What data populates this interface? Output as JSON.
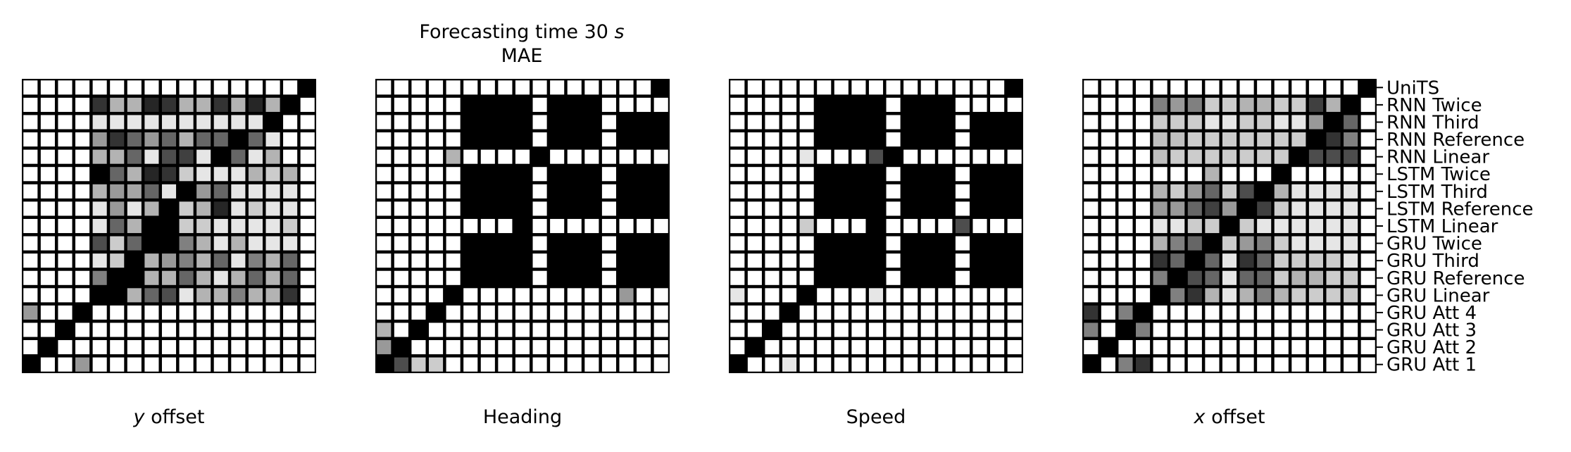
{
  "title_line1_prefix": "Forecasting time 30 ",
  "title_line1_unit": "s",
  "title_line2": "MAE",
  "models": [
    "UniTS",
    "RNN Twice",
    "RNN Third",
    "RNN Reference",
    "RNN Linear",
    "LSTM Twice",
    "LSTM Third",
    "LSTM Reference",
    "LSTM Linear",
    "GRU Twice",
    "GRU Third",
    "GRU Reference",
    "GRU Linear",
    "GRU Att 4",
    "GRU Att 3",
    "GRU Att 2",
    "GRU Att 1"
  ],
  "colors": {
    "background": "#ffffff",
    "cell_text": "#000000"
  },
  "chart_data": [
    {
      "type": "heatmap",
      "xlabel_var": "y",
      "xlabel_rest": " offset",
      "value_range": [
        0,
        1
      ],
      "colormap": "0 = white, 1 = black",
      "values": [
        [
          0,
          0,
          0,
          0,
          0,
          0,
          0,
          0,
          0,
          0,
          0,
          0,
          0,
          0,
          0,
          0,
          1
        ],
        [
          0,
          0,
          0,
          0,
          0.8,
          0.3,
          0.3,
          0.85,
          0.8,
          0.3,
          0.3,
          0.8,
          0.3,
          0.85,
          0.3,
          1,
          0
        ],
        [
          0,
          0,
          0,
          0,
          0.1,
          0.1,
          0.1,
          0.1,
          0.1,
          0.1,
          0.1,
          0.1,
          0.1,
          0.1,
          1,
          0,
          0
        ],
        [
          0,
          0,
          0,
          0,
          0.4,
          0.8,
          0.6,
          0.4,
          0.6,
          0.3,
          0.6,
          0.6,
          1,
          0.6,
          0.1,
          0,
          0
        ],
        [
          0,
          0,
          0,
          0,
          0.3,
          0.3,
          0.6,
          0.1,
          0.7,
          0.75,
          0.1,
          1,
          0.6,
          0.1,
          0.3,
          0,
          0
        ],
        [
          0,
          0,
          0,
          0,
          1,
          0.6,
          0.3,
          0.85,
          0.8,
          0.2,
          0.1,
          0.1,
          0.1,
          0.3,
          0.2,
          0.3,
          0
        ],
        [
          0,
          0,
          0,
          0,
          0.3,
          0.4,
          0.35,
          0.6,
          0.1,
          1,
          0.4,
          0.6,
          0.1,
          0.1,
          0.1,
          0.1,
          0
        ],
        [
          0,
          0,
          0,
          0,
          0.1,
          0.4,
          0.1,
          0.3,
          1,
          0.2,
          0.3,
          0.85,
          0.1,
          0.2,
          0.1,
          0.1,
          0
        ],
        [
          0,
          0,
          0,
          0,
          0.1,
          0.6,
          0.3,
          1,
          1,
          0.2,
          0.2,
          0.1,
          0.1,
          0.1,
          0.1,
          0.2,
          0
        ],
        [
          0,
          0,
          0,
          0,
          0.7,
          0.2,
          0.6,
          1,
          1,
          0.5,
          0.3,
          0.1,
          0.3,
          0.1,
          0.1,
          0.1,
          0
        ],
        [
          0,
          0,
          0,
          0,
          0.1,
          0.2,
          1,
          0.3,
          0.4,
          0.5,
          0.3,
          0.6,
          0.1,
          0.5,
          0.3,
          0.6,
          0
        ],
        [
          0,
          0,
          0,
          0,
          0.5,
          1,
          1,
          0.3,
          0.3,
          0.6,
          0.3,
          0.1,
          0.3,
          0.6,
          0.3,
          0.6,
          0
        ],
        [
          0,
          0,
          0,
          0,
          1,
          1,
          0.3,
          0.6,
          0.7,
          0.1,
          0.3,
          0.3,
          0.5,
          0.3,
          0.3,
          0.8,
          0
        ],
        [
          0.4,
          0,
          0,
          1,
          0,
          0,
          0,
          0,
          0,
          0,
          0,
          0,
          0,
          0,
          0,
          0,
          0
        ],
        [
          0,
          0,
          1,
          0,
          0,
          0,
          0,
          0,
          0,
          0,
          0,
          0,
          0,
          0,
          0,
          0,
          0
        ],
        [
          0,
          1,
          0,
          0,
          0,
          0,
          0,
          0,
          0,
          0,
          0,
          0,
          0,
          0,
          0,
          0,
          0
        ],
        [
          1,
          0,
          0,
          0.4,
          0,
          0,
          0,
          0,
          0,
          0,
          0,
          0,
          0,
          0,
          0,
          0,
          0
        ]
      ]
    },
    {
      "type": "heatmap",
      "xlabel_var": "",
      "xlabel_rest": "Heading",
      "value_range": [
        0,
        1
      ],
      "values": [
        [
          0,
          0,
          0,
          0,
          0,
          0,
          0,
          0,
          0,
          0,
          0,
          0,
          0,
          0,
          0,
          0,
          1
        ],
        [
          0,
          0,
          0,
          0,
          0,
          1,
          1,
          1,
          1,
          0,
          1,
          1,
          1,
          0,
          0,
          0,
          0
        ],
        [
          0,
          0,
          0,
          0,
          0,
          1,
          1,
          1,
          1,
          0,
          1,
          1,
          1,
          0,
          1,
          1,
          1
        ],
        [
          0,
          0,
          0,
          0,
          0,
          1,
          1,
          1,
          1,
          0,
          1,
          1,
          1,
          0,
          1,
          1,
          1
        ],
        [
          0,
          0,
          0,
          0,
          0.3,
          0,
          0,
          0,
          0,
          1,
          0,
          0,
          0,
          0,
          0,
          0,
          0
        ],
        [
          0,
          0,
          0,
          0,
          0,
          1,
          1,
          1,
          1,
          0,
          1,
          1,
          1,
          0,
          1,
          1,
          1
        ],
        [
          0,
          0,
          0,
          0,
          0,
          1,
          1,
          1,
          1,
          0,
          1,
          1,
          1,
          0,
          1,
          1,
          1
        ],
        [
          0,
          0,
          0,
          0,
          0,
          1,
          1,
          1,
          1,
          0,
          1,
          1,
          1,
          0,
          1,
          1,
          1
        ],
        [
          0,
          0,
          0,
          0,
          0,
          0,
          0,
          0,
          1,
          0,
          0,
          0,
          0,
          0,
          0,
          0,
          0
        ],
        [
          0,
          0,
          0,
          0,
          0,
          1,
          1,
          1,
          1,
          0,
          1,
          1,
          1,
          0,
          1,
          1,
          1
        ],
        [
          0,
          0,
          0,
          0,
          0,
          1,
          1,
          1,
          1,
          0,
          1,
          1,
          1,
          0,
          1,
          1,
          1
        ],
        [
          0,
          0,
          0,
          0,
          0,
          1,
          1,
          1,
          1,
          0,
          1,
          1,
          1,
          0,
          1,
          1,
          1
        ],
        [
          0,
          0,
          0,
          0,
          1,
          0,
          0,
          0,
          0,
          0,
          0,
          0,
          0,
          0,
          0.4,
          0,
          0
        ],
        [
          0,
          0,
          0,
          1,
          0,
          0,
          0,
          0,
          0,
          0,
          0,
          0,
          0,
          0,
          0,
          0,
          0
        ],
        [
          0.3,
          0,
          1,
          0,
          0,
          0,
          0,
          0,
          0,
          0,
          0,
          0,
          0,
          0,
          0,
          0,
          0
        ],
        [
          0.4,
          1,
          0,
          0,
          0,
          0,
          0,
          0,
          0,
          0,
          0,
          0,
          0,
          0,
          0,
          0,
          0
        ],
        [
          1,
          0.7,
          0.2,
          0.2,
          0,
          0,
          0,
          0,
          0,
          0,
          0,
          0,
          0,
          0,
          0,
          0,
          0
        ]
      ]
    },
    {
      "type": "heatmap",
      "xlabel_var": "",
      "xlabel_rest": "Speed",
      "value_range": [
        0,
        1
      ],
      "values": [
        [
          0,
          0,
          0,
          0,
          0,
          0,
          0,
          0,
          0,
          0,
          0,
          0,
          0,
          0,
          0,
          0,
          1
        ],
        [
          0,
          0,
          0,
          0,
          0,
          1,
          1,
          1,
          1,
          0,
          1,
          1,
          1,
          0,
          0,
          0,
          0
        ],
        [
          0,
          0,
          0,
          0,
          0,
          1,
          1,
          1,
          1,
          0,
          1,
          1,
          1,
          0,
          1,
          1,
          1
        ],
        [
          0,
          0,
          0,
          0,
          0,
          1,
          1,
          1,
          1,
          0,
          1,
          1,
          1,
          0,
          1,
          1,
          1
        ],
        [
          0,
          0,
          0,
          0,
          0.1,
          0,
          0,
          0,
          0.7,
          1,
          0,
          0,
          0,
          0,
          0,
          0,
          0
        ],
        [
          0,
          0,
          0,
          0,
          0,
          1,
          1,
          1,
          1,
          0,
          1,
          1,
          1,
          0,
          1,
          1,
          1
        ],
        [
          0,
          0,
          0,
          0,
          0,
          1,
          1,
          1,
          1,
          0,
          1,
          1,
          1,
          0,
          1,
          1,
          1
        ],
        [
          0,
          0,
          0,
          0,
          0,
          1,
          1,
          1,
          1,
          0,
          1,
          1,
          1,
          0,
          1,
          1,
          1
        ],
        [
          0,
          0,
          0,
          0,
          0.2,
          0,
          0,
          0,
          1,
          0,
          0,
          0,
          0,
          0.7,
          0,
          0,
          0
        ],
        [
          0,
          0,
          0,
          0,
          0,
          1,
          1,
          1,
          1,
          0,
          1,
          1,
          1,
          0,
          1,
          1,
          1
        ],
        [
          0,
          0,
          0,
          0,
          0,
          1,
          1,
          1,
          1,
          0,
          1,
          1,
          1,
          0,
          1,
          1,
          1
        ],
        [
          0,
          0,
          0,
          0,
          0,
          1,
          1,
          1,
          1,
          0,
          1,
          1,
          1,
          0,
          1,
          1,
          1
        ],
        [
          0.1,
          0,
          0,
          0,
          1,
          0,
          0,
          0,
          0.1,
          0,
          0,
          0,
          0,
          0,
          0,
          0,
          0
        ],
        [
          0,
          0,
          0,
          1,
          0,
          0,
          0,
          0,
          0,
          0,
          0,
          0,
          0,
          0,
          0,
          0,
          0
        ],
        [
          0,
          0,
          1,
          0,
          0,
          0,
          0,
          0,
          0,
          0,
          0,
          0,
          0,
          0,
          0,
          0,
          0
        ],
        [
          0,
          1,
          0,
          0,
          0,
          0,
          0,
          0,
          0,
          0,
          0,
          0,
          0,
          0,
          0,
          0,
          0
        ],
        [
          1,
          0,
          0,
          0.1,
          0,
          0,
          0,
          0,
          0,
          0,
          0,
          0,
          0,
          0,
          0,
          0,
          0
        ]
      ]
    },
    {
      "type": "heatmap",
      "xlabel_var": "x",
      "xlabel_rest": " offset",
      "value_range": [
        0,
        1
      ],
      "values": [
        [
          0,
          0,
          0,
          0,
          0,
          0,
          0,
          0,
          0,
          0,
          0,
          0,
          0,
          0,
          0,
          0,
          1
        ],
        [
          0,
          0,
          0,
          0,
          0.5,
          0.4,
          0.5,
          0.2,
          0.2,
          0.3,
          0.3,
          0.2,
          0.2,
          0.75,
          0.3,
          1,
          0
        ],
        [
          0,
          0,
          0,
          0,
          0.2,
          0.2,
          0.2,
          0.1,
          0.1,
          0.2,
          0.2,
          0.1,
          0.1,
          0.4,
          1,
          0.6,
          0
        ],
        [
          0,
          0,
          0,
          0,
          0.25,
          0.25,
          0.2,
          0.2,
          0.2,
          0.2,
          0.2,
          0.2,
          0.2,
          1,
          0.8,
          0.5,
          0
        ],
        [
          0,
          0,
          0,
          0,
          0.25,
          0.2,
          0.2,
          0.2,
          0.2,
          0.2,
          0.2,
          0.2,
          1,
          0.7,
          0.7,
          0.7,
          0
        ],
        [
          0,
          0,
          0,
          0,
          0,
          0,
          0,
          0.3,
          0,
          0,
          0,
          1,
          0,
          0,
          0,
          0,
          0
        ],
        [
          0,
          0,
          0,
          0,
          0.3,
          0.2,
          0.4,
          0.6,
          0.2,
          0.7,
          1,
          0.3,
          0.1,
          0.1,
          0.1,
          0.1,
          0
        ],
        [
          0,
          0,
          0,
          0,
          0.4,
          0.4,
          0.6,
          0.75,
          0.4,
          1,
          0.75,
          0.2,
          0.1,
          0.1,
          0.1,
          0.1,
          0
        ],
        [
          0,
          0,
          0,
          0,
          0.1,
          0.1,
          0.2,
          0.2,
          1,
          0.2,
          0.1,
          0.1,
          0.1,
          0.1,
          0.1,
          0.1,
          0
        ],
        [
          0,
          0,
          0,
          0,
          0.3,
          0.5,
          0.6,
          1,
          0.2,
          0.4,
          0.5,
          0.2,
          0.1,
          0.1,
          0.1,
          0.1,
          0
        ],
        [
          0,
          0,
          0,
          0,
          0.8,
          0.6,
          1,
          0.6,
          0.1,
          0.8,
          0.6,
          0.2,
          0.2,
          0.2,
          0.2,
          0.1,
          0
        ],
        [
          0,
          0,
          0,
          0,
          0.5,
          1,
          0.7,
          0.6,
          0.1,
          0.6,
          0.6,
          0.2,
          0.3,
          0.3,
          0.2,
          0.2,
          0
        ],
        [
          0,
          0,
          0,
          0,
          1,
          0.5,
          0.8,
          0.3,
          0.1,
          0.3,
          0.5,
          0.3,
          0.2,
          0.2,
          0.2,
          0.2,
          0
        ],
        [
          0.8,
          0,
          0.5,
          1,
          0,
          0,
          0,
          0,
          0,
          0,
          0,
          0,
          0,
          0,
          0,
          0,
          0
        ],
        [
          0.5,
          0,
          1,
          0.5,
          0,
          0,
          0,
          0,
          0,
          0,
          0,
          0,
          0,
          0,
          0,
          0,
          0
        ],
        [
          0,
          1,
          0,
          0,
          0,
          0,
          0,
          0,
          0,
          0,
          0,
          0,
          0,
          0,
          0,
          0,
          0
        ],
        [
          1,
          0,
          0.5,
          0.8,
          0,
          0,
          0,
          0,
          0,
          0,
          0,
          0,
          0,
          0,
          0,
          0,
          0
        ]
      ]
    }
  ]
}
